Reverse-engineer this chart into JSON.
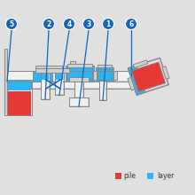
{
  "bg_color": "#e0e0e0",
  "blue": "#1565c0",
  "light_blue": "#29b6f6",
  "red": "#e53935",
  "gray_fill": "#d0d0d0",
  "gray_edge": "#888888",
  "white_fill": "#f0f0f0",
  "legend_pile": "pile",
  "legend_layer": "layer",
  "numbers": [
    "5",
    "2",
    "4",
    "3",
    "1",
    "6"
  ],
  "num_x": [
    13,
    55,
    78,
    100,
    122,
    148
  ],
  "num_y": [
    193,
    193,
    193,
    193,
    193,
    193
  ]
}
